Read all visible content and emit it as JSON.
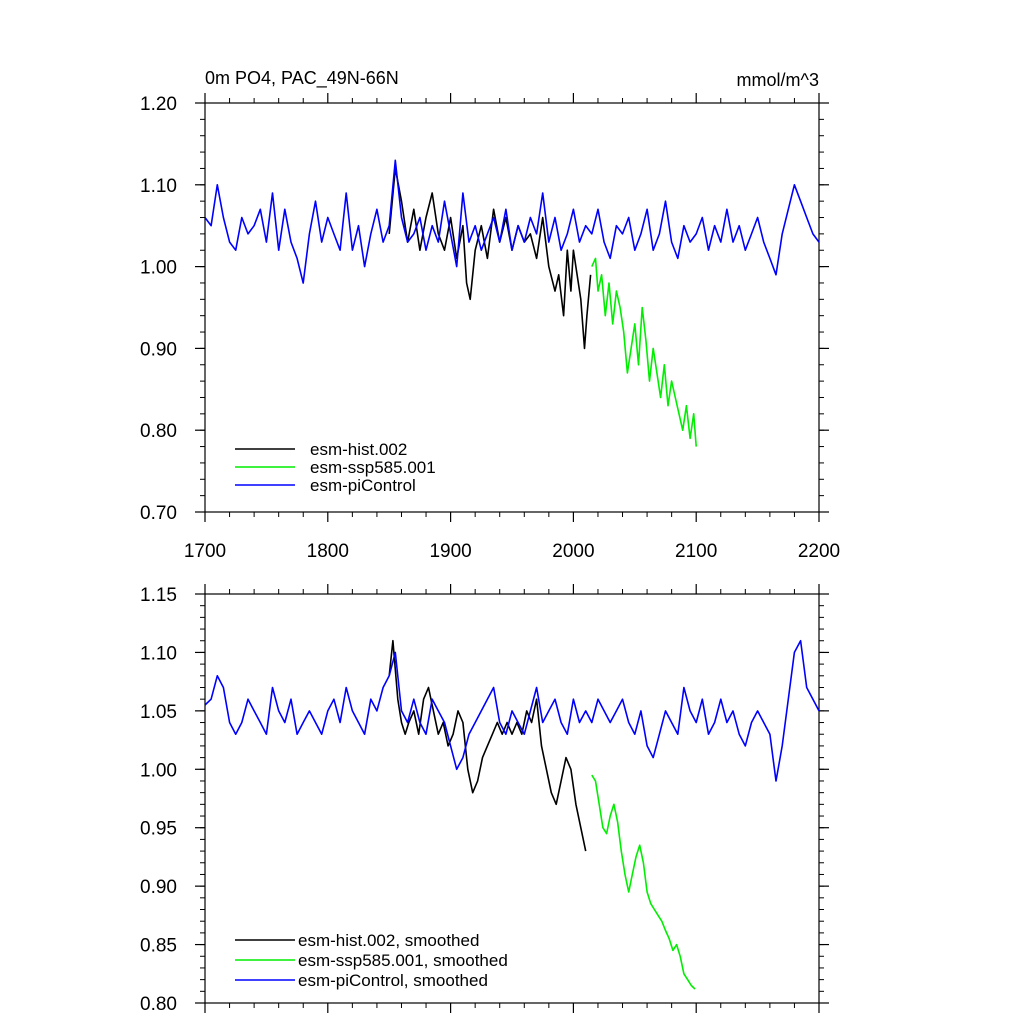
{
  "chart_data": [
    {
      "type": "line",
      "title": "0m PO4, PAC_49N-66N",
      "units": "mmol/m^3",
      "xlabel": "",
      "ylabel": "",
      "xlim": [
        1700,
        2200
      ],
      "ylim": [
        0.7,
        1.2
      ],
      "xticks": [
        "1700",
        "1800",
        "1900",
        "2000",
        "2100",
        "2200"
      ],
      "yticks": [
        "0.70",
        "0.80",
        "0.90",
        "1.00",
        "1.10",
        "1.20"
      ],
      "grid": false,
      "legend_position": "bottom-left",
      "series": [
        {
          "name": "esm-hist.002",
          "color": "#000000",
          "x": [
            1850,
            1855,
            1860,
            1865,
            1870,
            1875,
            1880,
            1885,
            1890,
            1895,
            1900,
            1905,
            1910,
            1913,
            1916,
            1920,
            1925,
            1930,
            1935,
            1940,
            1945,
            1950,
            1955,
            1960,
            1965,
            1970,
            1975,
            1980,
            1985,
            1988,
            1992,
            1995,
            1998,
            2000,
            2003,
            2006,
            2009,
            2011,
            2014
          ],
          "values": [
            1.04,
            1.12,
            1.08,
            1.03,
            1.07,
            1.02,
            1.06,
            1.09,
            1.04,
            1.02,
            1.06,
            1.01,
            1.05,
            0.98,
            0.96,
            1.02,
            1.05,
            1.01,
            1.07,
            1.03,
            1.06,
            1.02,
            1.05,
            1.03,
            1.04,
            1.01,
            1.06,
            1.0,
            0.97,
            0.99,
            0.94,
            1.02,
            0.97,
            1.02,
            0.99,
            0.96,
            0.9,
            0.94,
            0.99
          ]
        },
        {
          "name": "esm-ssp585.001",
          "color": "#00ee00",
          "x": [
            2015,
            2018,
            2020,
            2023,
            2026,
            2029,
            2032,
            2035,
            2038,
            2041,
            2044,
            2047,
            2050,
            2053,
            2056,
            2059,
            2062,
            2065,
            2068,
            2071,
            2074,
            2077,
            2080,
            2083,
            2086,
            2089,
            2092,
            2095,
            2098,
            2100
          ],
          "values": [
            1.0,
            1.01,
            0.97,
            0.99,
            0.94,
            0.98,
            0.93,
            0.97,
            0.95,
            0.92,
            0.87,
            0.9,
            0.93,
            0.88,
            0.95,
            0.91,
            0.86,
            0.9,
            0.87,
            0.84,
            0.88,
            0.83,
            0.86,
            0.84,
            0.82,
            0.8,
            0.83,
            0.79,
            0.82,
            0.78
          ]
        },
        {
          "name": "esm-piControl",
          "color": "#0000ff",
          "x": [
            1700,
            1705,
            1710,
            1715,
            1720,
            1725,
            1730,
            1735,
            1740,
            1745,
            1750,
            1755,
            1760,
            1765,
            1770,
            1775,
            1780,
            1785,
            1790,
            1795,
            1800,
            1805,
            1810,
            1815,
            1820,
            1825,
            1830,
            1835,
            1840,
            1845,
            1850,
            1855,
            1860,
            1865,
            1870,
            1875,
            1880,
            1885,
            1890,
            1895,
            1900,
            1905,
            1910,
            1915,
            1920,
            1925,
            1930,
            1935,
            1940,
            1945,
            1950,
            1955,
            1960,
            1965,
            1970,
            1975,
            1980,
            1985,
            1990,
            1995,
            2000,
            2005,
            2010,
            2015,
            2020,
            2025,
            2030,
            2035,
            2040,
            2045,
            2050,
            2055,
            2060,
            2065,
            2070,
            2075,
            2080,
            2085,
            2090,
            2095,
            2100,
            2105,
            2110,
            2115,
            2120,
            2125,
            2130,
            2135,
            2140,
            2145,
            2150,
            2155,
            2160,
            2165,
            2170,
            2175,
            2180,
            2185,
            2190,
            2195,
            2200
          ],
          "values": [
            1.06,
            1.05,
            1.1,
            1.06,
            1.03,
            1.02,
            1.06,
            1.04,
            1.05,
            1.07,
            1.03,
            1.09,
            1.02,
            1.07,
            1.03,
            1.01,
            0.98,
            1.04,
            1.08,
            1.03,
            1.06,
            1.04,
            1.02,
            1.09,
            1.02,
            1.05,
            1.0,
            1.04,
            1.07,
            1.03,
            1.05,
            1.13,
            1.06,
            1.03,
            1.04,
            1.06,
            1.02,
            1.05,
            1.03,
            1.08,
            1.04,
            1.0,
            1.09,
            1.03,
            1.05,
            1.02,
            1.04,
            1.06,
            1.03,
            1.07,
            1.02,
            1.05,
            1.03,
            1.06,
            1.04,
            1.09,
            1.03,
            1.06,
            1.02,
            1.04,
            1.07,
            1.03,
            1.05,
            1.04,
            1.07,
            1.03,
            1.01,
            1.05,
            1.04,
            1.06,
            1.02,
            1.04,
            1.07,
            1.02,
            1.04,
            1.08,
            1.03,
            1.01,
            1.05,
            1.03,
            1.04,
            1.06,
            1.02,
            1.05,
            1.03,
            1.07,
            1.03,
            1.05,
            1.02,
            1.04,
            1.06,
            1.03,
            1.01,
            0.99,
            1.04,
            1.07,
            1.1,
            1.08,
            1.06,
            1.04,
            1.03
          ]
        }
      ]
    },
    {
      "type": "line",
      "title": "",
      "xlabel": "",
      "ylabel": "",
      "xlim": [
        1700,
        2200
      ],
      "ylim": [
        0.8,
        1.15
      ],
      "yticks": [
        "0.80",
        "0.85",
        "0.90",
        "0.95",
        "1.00",
        "1.05",
        "1.10",
        "1.15"
      ],
      "grid": false,
      "legend_position": "bottom-left",
      "series": [
        {
          "name": "esm-hist.002, smoothed",
          "color": "#000000",
          "x": [
            1850,
            1853,
            1857,
            1860,
            1863,
            1866,
            1870,
            1874,
            1878,
            1882,
            1886,
            1890,
            1894,
            1898,
            1902,
            1906,
            1910,
            1914,
            1918,
            1922,
            1926,
            1930,
            1934,
            1938,
            1942,
            1946,
            1950,
            1954,
            1958,
            1962,
            1966,
            1970,
            1974,
            1978,
            1982,
            1986,
            1990,
            1994,
            1998,
            2002,
            2006,
            2010
          ],
          "values": [
            1.08,
            1.11,
            1.06,
            1.04,
            1.03,
            1.04,
            1.05,
            1.03,
            1.06,
            1.07,
            1.05,
            1.03,
            1.04,
            1.02,
            1.03,
            1.05,
            1.04,
            1.0,
            0.98,
            0.99,
            1.01,
            1.02,
            1.03,
            1.04,
            1.03,
            1.04,
            1.03,
            1.04,
            1.03,
            1.05,
            1.04,
            1.06,
            1.02,
            1.0,
            0.98,
            0.97,
            0.99,
            1.01,
            1.0,
            0.97,
            0.95,
            0.93
          ]
        },
        {
          "name": "esm-ssp585.001, smoothed",
          "color": "#00ee00",
          "x": [
            2015,
            2018,
            2021,
            2024,
            2027,
            2030,
            2033,
            2036,
            2039,
            2042,
            2045,
            2048,
            2051,
            2054,
            2057,
            2060,
            2063,
            2066,
            2069,
            2072,
            2075,
            2078,
            2081,
            2084,
            2087,
            2090,
            2093,
            2096,
            2099
          ],
          "values": [
            0.995,
            0.99,
            0.97,
            0.95,
            0.945,
            0.96,
            0.97,
            0.955,
            0.93,
            0.91,
            0.895,
            0.91,
            0.925,
            0.935,
            0.92,
            0.895,
            0.885,
            0.88,
            0.875,
            0.87,
            0.862,
            0.855,
            0.845,
            0.85,
            0.84,
            0.825,
            0.82,
            0.815,
            0.812
          ]
        },
        {
          "name": "esm-piControl, smoothed",
          "color": "#0000ff",
          "x": [
            1700,
            1705,
            1710,
            1715,
            1720,
            1725,
            1730,
            1735,
            1740,
            1745,
            1750,
            1755,
            1760,
            1765,
            1770,
            1775,
            1780,
            1785,
            1790,
            1795,
            1800,
            1805,
            1810,
            1815,
            1820,
            1825,
            1830,
            1835,
            1840,
            1845,
            1850,
            1855,
            1860,
            1865,
            1870,
            1875,
            1880,
            1885,
            1890,
            1895,
            1900,
            1905,
            1910,
            1915,
            1920,
            1925,
            1930,
            1935,
            1940,
            1945,
            1950,
            1955,
            1960,
            1965,
            1970,
            1975,
            1980,
            1985,
            1990,
            1995,
            2000,
            2005,
            2010,
            2015,
            2020,
            2025,
            2030,
            2035,
            2040,
            2045,
            2050,
            2055,
            2060,
            2065,
            2070,
            2075,
            2080,
            2085,
            2090,
            2095,
            2100,
            2105,
            2110,
            2115,
            2120,
            2125,
            2130,
            2135,
            2140,
            2145,
            2150,
            2155,
            2160,
            2165,
            2170,
            2175,
            2180,
            2185,
            2190,
            2195,
            2200
          ],
          "values": [
            1.055,
            1.06,
            1.08,
            1.07,
            1.04,
            1.03,
            1.04,
            1.06,
            1.05,
            1.04,
            1.03,
            1.07,
            1.05,
            1.04,
            1.06,
            1.03,
            1.04,
            1.05,
            1.04,
            1.03,
            1.05,
            1.06,
            1.04,
            1.07,
            1.05,
            1.04,
            1.03,
            1.06,
            1.05,
            1.07,
            1.08,
            1.1,
            1.05,
            1.04,
            1.06,
            1.04,
            1.03,
            1.06,
            1.05,
            1.04,
            1.02,
            1.0,
            1.01,
            1.03,
            1.04,
            1.05,
            1.06,
            1.07,
            1.04,
            1.03,
            1.05,
            1.04,
            1.03,
            1.05,
            1.07,
            1.04,
            1.05,
            1.06,
            1.04,
            1.03,
            1.06,
            1.04,
            1.05,
            1.04,
            1.06,
            1.05,
            1.04,
            1.05,
            1.06,
            1.04,
            1.03,
            1.05,
            1.02,
            1.01,
            1.03,
            1.05,
            1.04,
            1.03,
            1.07,
            1.05,
            1.04,
            1.06,
            1.03,
            1.04,
            1.06,
            1.04,
            1.05,
            1.03,
            1.02,
            1.04,
            1.05,
            1.04,
            1.03,
            0.99,
            1.02,
            1.06,
            1.1,
            1.11,
            1.07,
            1.06,
            1.05
          ]
        }
      ]
    }
  ]
}
